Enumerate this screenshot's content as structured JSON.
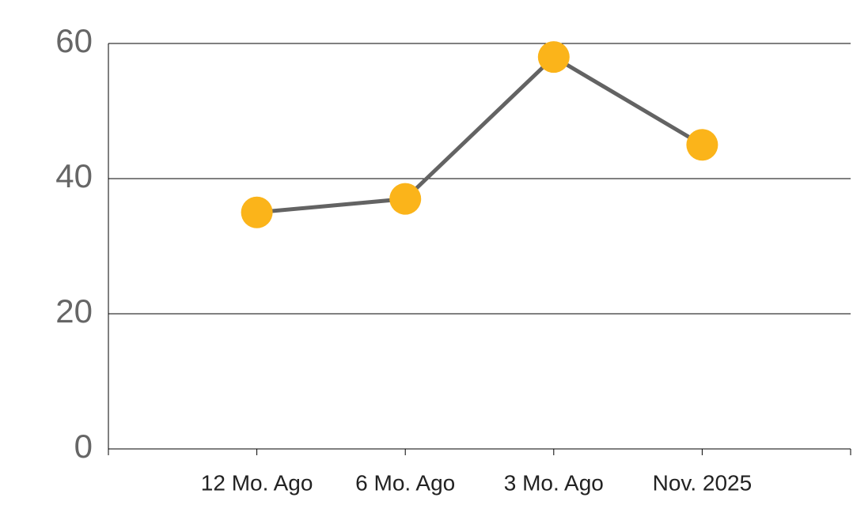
{
  "chart_data": {
    "type": "line",
    "categories": [
      "12 Mo. Ago",
      "6 Mo. Ago",
      "3 Mo. Ago",
      "Nov. 2025"
    ],
    "values": [
      35,
      37,
      58,
      45
    ],
    "color": "#636363",
    "marker_color": "#fbb41a",
    "ylim": [
      0,
      60
    ],
    "yticks": [
      0,
      20,
      40,
      60
    ],
    "grid": true
  }
}
